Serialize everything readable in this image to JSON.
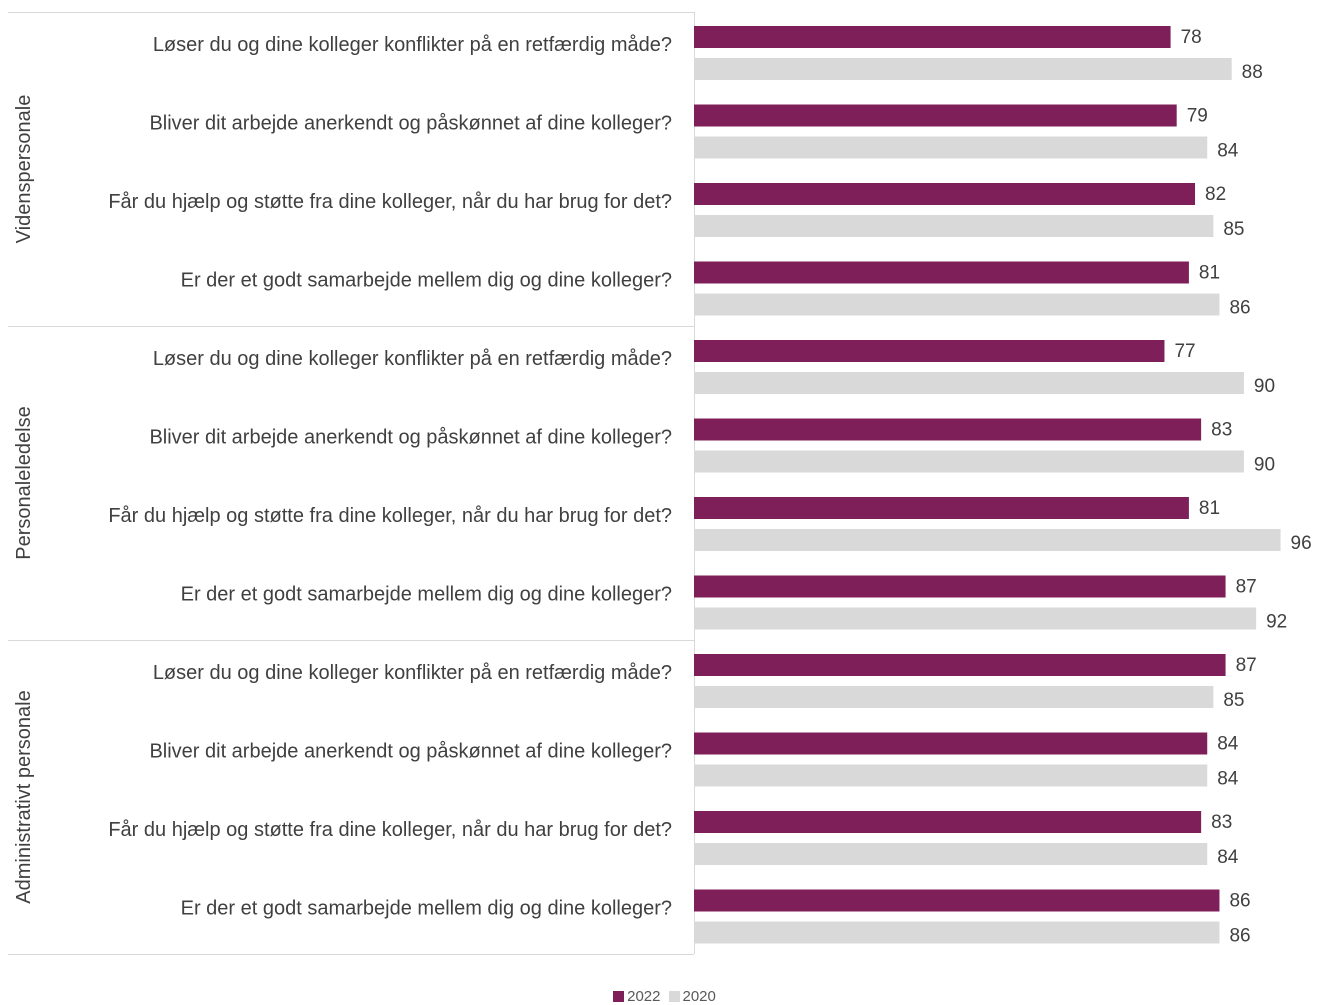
{
  "chart_data": {
    "type": "bar",
    "orientation": "horizontal",
    "groups": [
      {
        "name": "Videnspersonale",
        "questions": [
          "Løser du og dine kolleger konflikter på en retfærdig måde?",
          "Bliver dit arbejde anerkendt og påskønnet af dine kolleger?",
          "Får du hjælp og støtte fra dine kolleger, når du har brug for det?",
          "Er der et godt samarbejde mellem dig og dine kolleger?"
        ],
        "values_2022": [
          78,
          79,
          82,
          81
        ],
        "values_2020": [
          88,
          84,
          85,
          86
        ]
      },
      {
        "name": "Personaleledelse",
        "questions": [
          "Løser du og dine kolleger konflikter på en retfærdig måde?",
          "Bliver dit arbejde anerkendt og påskønnet af dine kolleger?",
          "Får du hjælp og støtte fra dine kolleger, når du har brug for det?",
          "Er der et godt samarbejde mellem dig og dine kolleger?"
        ],
        "values_2022": [
          77,
          83,
          81,
          87
        ],
        "values_2020": [
          90,
          90,
          96,
          92
        ]
      },
      {
        "name": "Administrativt personale",
        "questions": [
          "Løser du og dine kolleger konflikter på en retfærdig måde?",
          "Bliver dit arbejde anerkendt og påskønnet af dine kolleger?",
          "Får du hjælp og støtte fra dine kolleger, når du har brug for det?",
          "Er der et godt samarbejde mellem dig og dine kolleger?"
        ],
        "values_2022": [
          87,
          84,
          83,
          86
        ],
        "values_2020": [
          85,
          84,
          84,
          86
        ]
      }
    ],
    "series": [
      {
        "name": "2022",
        "color": "#7f1f5a"
      },
      {
        "name": "2020",
        "color": "#d9d9d9"
      }
    ],
    "xlim": [
      0,
      100
    ],
    "grid": false,
    "legend_position": "bottom-center"
  }
}
